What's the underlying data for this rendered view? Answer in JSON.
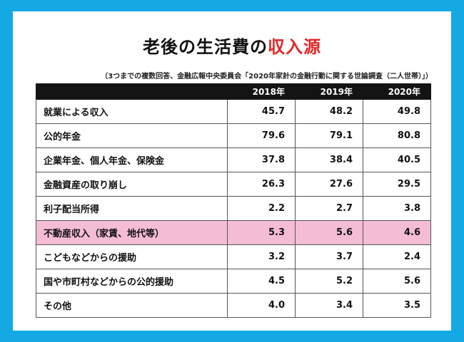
{
  "title_main": "老後の生活費の",
  "title_accent": "収入源",
  "source": "（3つまでの複数回答、金融広報中央委員会「2020年家計の金融行動に関する世論調査（二人世帯）」）",
  "colors": {
    "frame": "#15a9e4",
    "accent": "#e32626",
    "header_bg": "#141414",
    "highlight": "#f5bcd6"
  },
  "chart_data": {
    "type": "table",
    "columns": [
      "2018年",
      "2019年",
      "2020年"
    ],
    "rows": [
      {
        "label": "就業による収入",
        "values": [
          "45.7",
          "48.2",
          "49.8"
        ],
        "highlight": false
      },
      {
        "label": "公的年金",
        "values": [
          "79.6",
          "79.1",
          "80.8"
        ],
        "highlight": false
      },
      {
        "label": "企業年金、個人年金、保険金",
        "values": [
          "37.8",
          "38.4",
          "40.5"
        ],
        "highlight": false
      },
      {
        "label": "金融資産の取り崩し",
        "values": [
          "26.3",
          "27.6",
          "29.5"
        ],
        "highlight": false
      },
      {
        "label": "利子配当所得",
        "values": [
          "2.2",
          "2.7",
          "3.8"
        ],
        "highlight": false
      },
      {
        "label": "不動産収入（家賃、地代等）",
        "values": [
          "5.3",
          "5.6",
          "4.6"
        ],
        "highlight": true
      },
      {
        "label": "こどもなどからの援助",
        "values": [
          "3.2",
          "3.7",
          "2.4"
        ],
        "highlight": false
      },
      {
        "label": "国や市町村などからの公的援助",
        "values": [
          "4.5",
          "5.2",
          "5.6"
        ],
        "highlight": false
      },
      {
        "label": "その他",
        "values": [
          "4.0",
          "3.4",
          "3.5"
        ],
        "highlight": false
      }
    ]
  }
}
